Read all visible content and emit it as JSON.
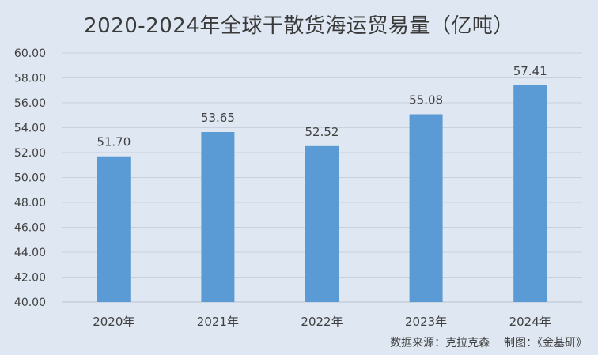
{
  "chart_data": {
    "type": "bar",
    "title": "2020-2024年全球干散货海运贸易量（亿吨）",
    "categories": [
      "2020年",
      "2021年",
      "2022年",
      "2023年",
      "2024年"
    ],
    "values": [
      51.7,
      53.65,
      52.52,
      55.08,
      57.41
    ],
    "data_labels": [
      "51.70",
      "53.65",
      "52.52",
      "55.08",
      "57.41"
    ],
    "ylim": [
      40,
      60
    ],
    "yticks": [
      "40.00",
      "42.00",
      "44.00",
      "46.00",
      "48.00",
      "50.00",
      "52.00",
      "54.00",
      "56.00",
      "58.00",
      "60.00"
    ],
    "xlabel": "",
    "ylabel": "",
    "grid": true,
    "legend": "none",
    "colors": {
      "bar": "#5b9bd5",
      "background": "#dfe8f2",
      "grid": "#c8d1dc",
      "text": "#404040"
    }
  },
  "footer": {
    "source": "数据来源：克拉克森    制图：《金基研》"
  }
}
